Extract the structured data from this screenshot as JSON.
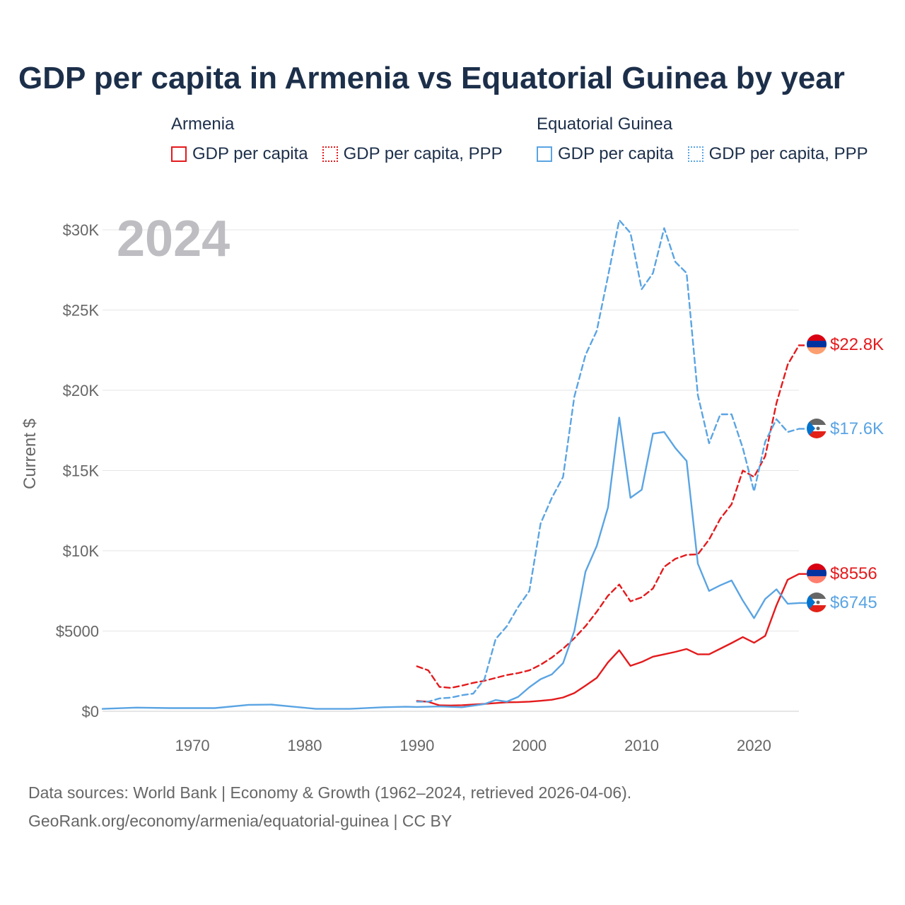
{
  "title": "GDP per capita in Armenia vs Equatorial Guinea by year",
  "legend": {
    "armenia": {
      "group": "Armenia",
      "items": [
        "GDP per capita",
        "GDP per capita, PPP"
      ],
      "color": "#e41a1c"
    },
    "eqg": {
      "group": "Equatorial Guinea",
      "items": [
        "GDP per capita",
        "GDP per capita, PPP"
      ],
      "color": "#5aa4e3"
    }
  },
  "source": {
    "line1": "Data sources: World Bank | Economy & Growth (1962–2024, retrieved 2026-04-06).",
    "line2": "GeoRank.org/economy/armenia/equatorial-guinea | CC BY"
  },
  "chart_data": {
    "type": "line",
    "year_watermark": "2024",
    "ylabel": "Current $",
    "xlim": [
      1962,
      2024
    ],
    "ylim": [
      0,
      30000
    ],
    "x_ticks": [
      1970,
      1980,
      1990,
      2000,
      2010,
      2020
    ],
    "y_ticks": [
      0,
      5000,
      10000,
      15000,
      20000,
      25000,
      30000
    ],
    "y_tick_labels": [
      "$0",
      "$5000",
      "$10K",
      "$15K",
      "$20K",
      "$25K",
      "$30K"
    ],
    "end_labels": {
      "armenia_ppp": "$22.8K",
      "eqg_ppp": "$17.6K",
      "armenia_gdp": "$8556",
      "eqg_gdp": "$6745"
    },
    "series": [
      {
        "name": "Armenia GDP per capita",
        "country": "armenia",
        "style": "solid",
        "color": "#e41a1c",
        "x": [
          1990,
          1991,
          1992,
          1993,
          1994,
          1995,
          1996,
          1997,
          1998,
          1999,
          2000,
          2001,
          2002,
          2003,
          2004,
          2005,
          2006,
          2007,
          2008,
          2009,
          2010,
          2011,
          2012,
          2013,
          2014,
          2015,
          2016,
          2017,
          2018,
          2019,
          2020,
          2021,
          2022,
          2023,
          2024
        ],
        "values": [
          640,
          590,
          370,
          360,
          380,
          420,
          460,
          510,
          560,
          570,
          600,
          650,
          720,
          860,
          1130,
          1600,
          2080,
          3050,
          3800,
          2830,
          3070,
          3400,
          3550,
          3700,
          3880,
          3550,
          3550,
          3900,
          4250,
          4620,
          4270,
          4700,
          6600,
          8200,
          8556
        ]
      },
      {
        "name": "Armenia GDP per capita, PPP",
        "country": "armenia",
        "style": "dashed",
        "color": "#e41a1c",
        "x": [
          1990,
          1991,
          1992,
          1993,
          1994,
          1995,
          1996,
          1997,
          1998,
          1999,
          2000,
          2001,
          2002,
          2003,
          2004,
          2005,
          2006,
          2007,
          2008,
          2009,
          2010,
          2011,
          2012,
          2013,
          2014,
          2015,
          2016,
          2017,
          2018,
          2019,
          2020,
          2021,
          2022,
          2023,
          2024
        ],
        "values": [
          2800,
          2550,
          1520,
          1460,
          1600,
          1770,
          1900,
          2080,
          2260,
          2380,
          2550,
          2900,
          3350,
          3900,
          4550,
          5300,
          6200,
          7200,
          7900,
          6850,
          7100,
          7650,
          9000,
          9500,
          9750,
          9780,
          10700,
          12000,
          12900,
          15000,
          14600,
          15900,
          19200,
          21600,
          22800
        ]
      },
      {
        "name": "Equatorial Guinea GDP per capita",
        "country": "eqg",
        "style": "solid",
        "color": "#5aa4e3",
        "x": [
          1962,
          1965,
          1968,
          1972,
          1975,
          1977,
          1979,
          1981,
          1984,
          1987,
          1989,
          1990,
          1992,
          1994,
          1996,
          1997,
          1998,
          1999,
          2000,
          2001,
          2002,
          2003,
          2004,
          2005,
          2006,
          2007,
          2008,
          2009,
          2010,
          2011,
          2012,
          2013,
          2014,
          2015,
          2016,
          2017,
          2018,
          2019,
          2020,
          2021,
          2022,
          2023,
          2024
        ],
        "values": [
          150,
          230,
          200,
          200,
          400,
          420,
          280,
          150,
          150,
          250,
          280,
          270,
          300,
          250,
          450,
          700,
          600,
          900,
          1500,
          2000,
          2300,
          3000,
          5000,
          8700,
          10300,
          12700,
          18300,
          13300,
          13800,
          17300,
          17400,
          16400,
          15600,
          9200,
          7500,
          7850,
          8150,
          6900,
          5800,
          7000,
          7600,
          6700,
          6745
        ]
      },
      {
        "name": "Equatorial Guinea GDP per capita, PPP",
        "country": "eqg",
        "style": "dashed",
        "color": "#5aa4e3",
        "x": [
          1990,
          1991,
          1992,
          1993,
          1994,
          1995,
          1996,
          1997,
          1998,
          1999,
          2000,
          2001,
          2002,
          2003,
          2004,
          2005,
          2006,
          2007,
          2008,
          2009,
          2010,
          2011,
          2012,
          2013,
          2014,
          2015,
          2016,
          2017,
          2018,
          2019,
          2020,
          2021,
          2022,
          2023,
          2024
        ],
        "values": [
          600,
          600,
          800,
          850,
          1000,
          1100,
          2000,
          4500,
          5300,
          6500,
          7500,
          11700,
          13300,
          14600,
          19600,
          22200,
          23700,
          27100,
          30600,
          29800,
          26300,
          27300,
          30100,
          28000,
          27300,
          19700,
          16700,
          18500,
          18500,
          16400,
          13700,
          16800,
          18200,
          17400,
          17600
        ]
      }
    ]
  }
}
